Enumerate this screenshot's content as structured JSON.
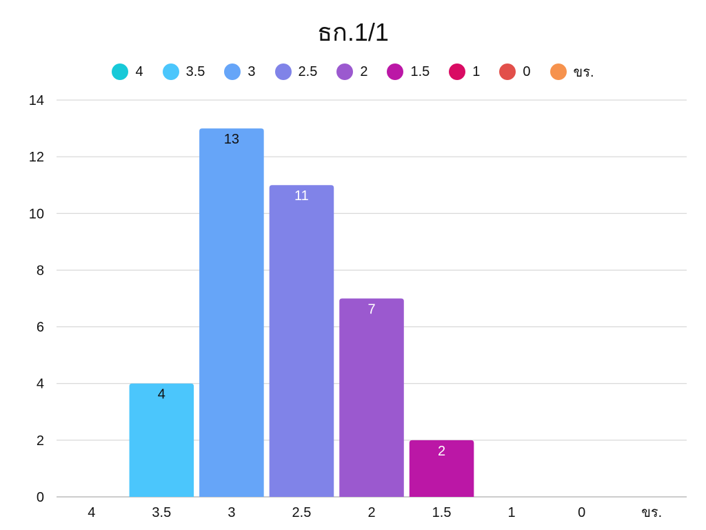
{
  "chart_data": {
    "type": "bar",
    "title": "ธก.1/1",
    "xlabel": "",
    "ylabel": "",
    "categories": [
      "4",
      "3.5",
      "3",
      "2.5",
      "2",
      "1.5",
      "1",
      "0",
      "ขร."
    ],
    "values": [
      0,
      4,
      13,
      11,
      7,
      2,
      0,
      0,
      0
    ],
    "colors": [
      "#17c9d8",
      "#4bc6fc",
      "#66a5f8",
      "#8083e8",
      "#9b59cf",
      "#bb17a6",
      "#d90b63",
      "#e24f4a",
      "#f6924d"
    ],
    "label_colors": [
      "#111111",
      "#111111",
      "#111111",
      "#ffffff",
      "#ffffff",
      "#ffffff",
      "#ffffff",
      "#ffffff",
      "#111111"
    ],
    "ylim": [
      0,
      14
    ],
    "yticks": [
      "0",
      "2",
      "4",
      "6",
      "8",
      "10",
      "12",
      "14"
    ],
    "grid": true,
    "legend_position": "top"
  }
}
